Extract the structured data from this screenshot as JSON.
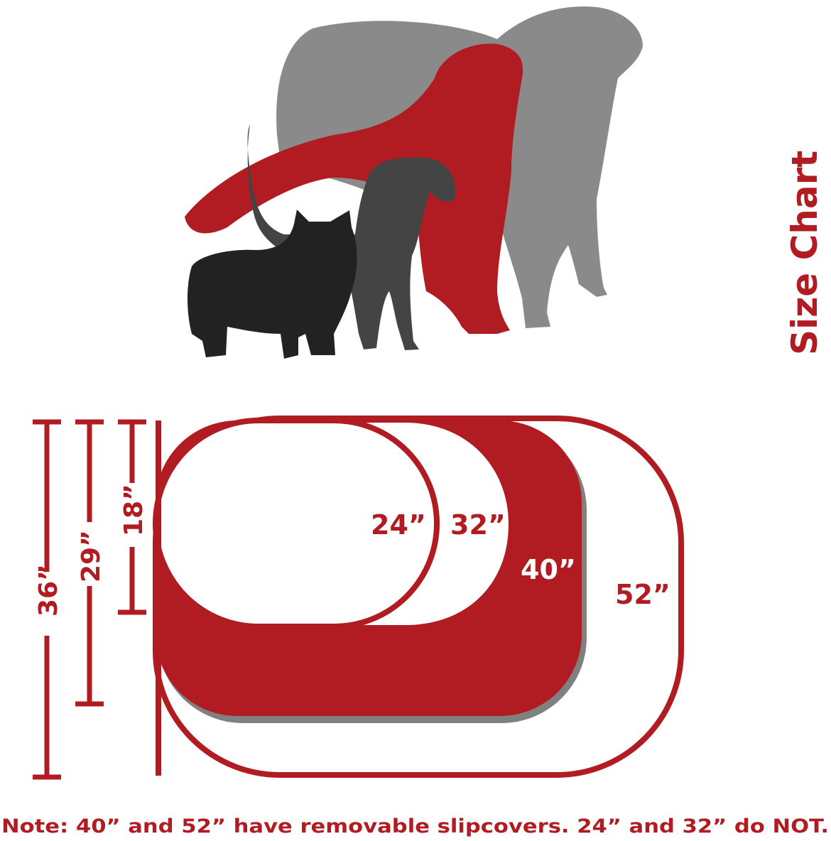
{
  "title": "Size Chart",
  "sizes": [
    {
      "label": "24”"
    },
    {
      "label": "32”"
    },
    {
      "label": "40”"
    },
    {
      "label": "52”"
    }
  ],
  "heights": [
    {
      "label": "36”"
    },
    {
      "label": "29”"
    },
    {
      "label": "18”"
    }
  ],
  "note": "Note: 40” and 52” have removable slipcovers. 24” and 32” do NOT.",
  "colors": {
    "accent": "#b01c21",
    "gray": "#8a8a8a",
    "dark": "#444444",
    "black": "#222222"
  },
  "icons": [
    "large-dog-silhouette",
    "medium-red-dog-silhouette",
    "small-dog-silhouette",
    "terrier-silhouette"
  ]
}
